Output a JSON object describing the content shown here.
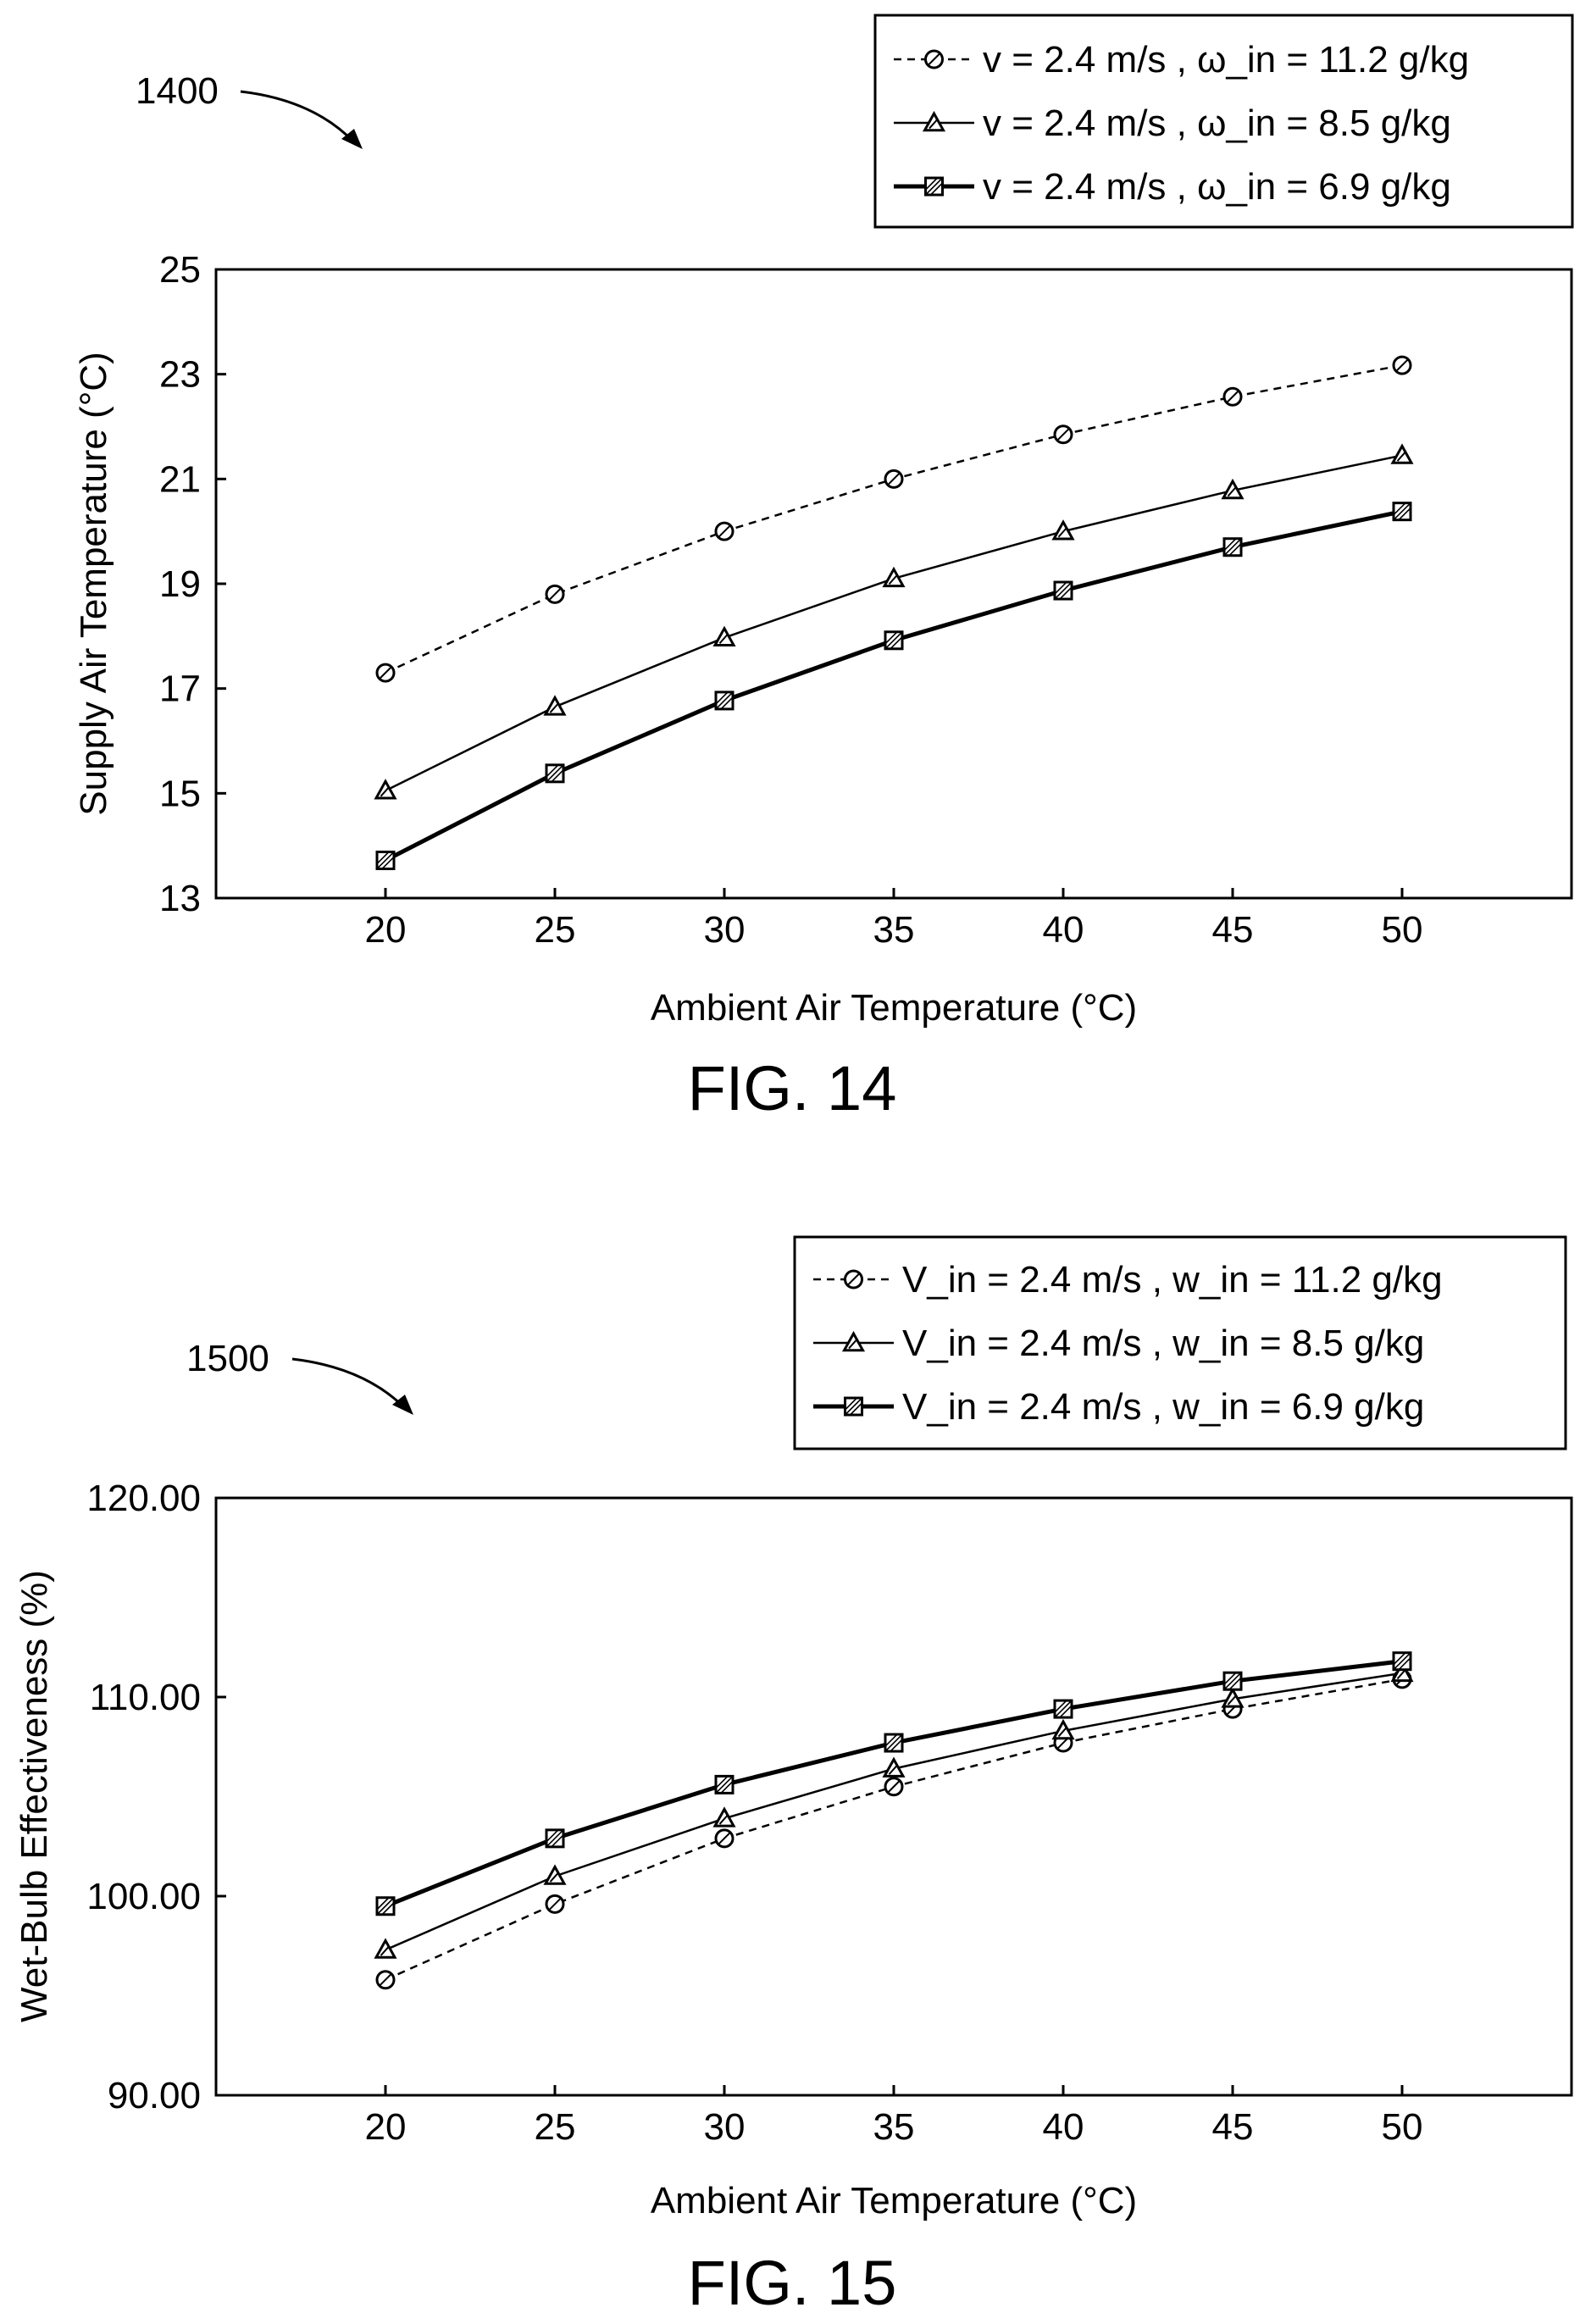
{
  "figures": [
    {
      "ref_label": "1400",
      "caption": "FIG. 14"
    },
    {
      "ref_label": "1500",
      "caption": "FIG. 15"
    }
  ],
  "chart_data": [
    {
      "type": "line",
      "title": "",
      "xlabel": "Ambient Air Temperature (°C)",
      "ylabel": "Supply Air Temperature (°C)",
      "x": [
        20,
        25,
        30,
        35,
        40,
        45,
        50
      ],
      "xlim": [
        15,
        55
      ],
      "ylim": [
        13,
        25
      ],
      "x_ticks": [
        "20",
        "25",
        "30",
        "35",
        "40",
        "45",
        "50"
      ],
      "y_ticks": [
        "13",
        "15",
        "17",
        "19",
        "21",
        "23",
        "25"
      ],
      "legend_position": "top-right",
      "grid": false,
      "series": [
        {
          "name": "v = 2.4 m/s , ω_in = 11.2 g/kg",
          "marker": "circle",
          "line": "dashed",
          "values": [
            17.3,
            18.8,
            20.0,
            21.0,
            21.85,
            22.57,
            23.17
          ]
        },
        {
          "name": "v = 2.4 m/s , ω_in = 8.5 g/kg",
          "marker": "triangle",
          "line": "solid",
          "values": [
            15.05,
            16.65,
            17.97,
            19.1,
            20.0,
            20.78,
            21.45
          ]
        },
        {
          "name": "v = 2.4 m/s , ω_in = 6.9 g/kg",
          "marker": "square",
          "line": "thick",
          "values": [
            13.72,
            15.38,
            16.77,
            17.92,
            18.87,
            19.7,
            20.38
          ]
        }
      ]
    },
    {
      "type": "line",
      "title": "",
      "xlabel": "Ambient Air Temperature (°C)",
      "ylabel": "Wet-Bulb Effectiveness (%)",
      "x": [
        20,
        25,
        30,
        35,
        40,
        45,
        50
      ],
      "xlim": [
        15,
        55
      ],
      "ylim": [
        90,
        120
      ],
      "x_ticks": [
        "20",
        "25",
        "30",
        "35",
        "40",
        "45",
        "50"
      ],
      "y_ticks": [
        "90.00",
        "100.00",
        "110.00",
        "120.00"
      ],
      "legend_position": "top-right",
      "grid": false,
      "series": [
        {
          "name": "V_in = 2.4 m/s , w_in = 11.2 g/kg",
          "marker": "circle",
          "line": "dashed",
          "values": [
            95.8,
            99.6,
            102.9,
            105.5,
            107.7,
            109.4,
            110.9
          ]
        },
        {
          "name": "V_in = 2.4 m/s , w_in = 8.5 g/kg",
          "marker": "triangle",
          "line": "solid",
          "values": [
            97.3,
            101.0,
            103.9,
            106.4,
            108.3,
            109.9,
            111.2
          ]
        },
        {
          "name": "V_in = 2.4 m/s , w_in = 6.9 g/kg",
          "marker": "square",
          "line": "thick",
          "values": [
            99.5,
            102.9,
            105.6,
            107.7,
            109.4,
            110.8,
            111.8
          ]
        }
      ]
    }
  ]
}
